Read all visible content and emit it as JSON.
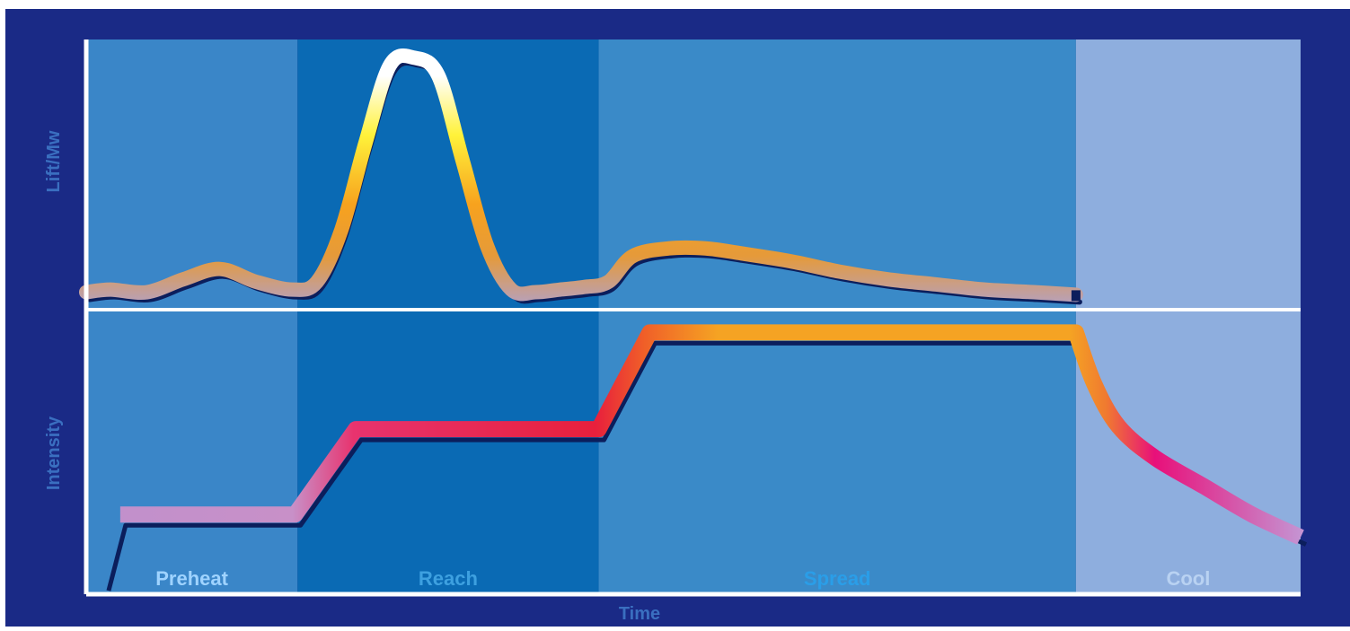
{
  "chart_data": [
    {
      "type": "line",
      "title": "",
      "ylabel": "Lift/Mw",
      "xlabel": "",
      "grid": false,
      "legend": "none",
      "xlim": [
        0,
        100
      ],
      "ylim": [
        0,
        100
      ],
      "phases": [
        {
          "label": "Preheat",
          "start": 0,
          "end": 17.4,
          "color": "#3a86c8",
          "label_color": "#9fd3ff"
        },
        {
          "label": "Reach",
          "start": 17.4,
          "end": 42.2,
          "color": "#0a6ab4",
          "label_color": "#3da0e0"
        },
        {
          "label": "Spread",
          "start": 42.2,
          "end": 81.5,
          "color": "#3a8ac8",
          "label_color": "#2a9ee8"
        },
        {
          "label": "Cool",
          "start": 81.5,
          "end": 100,
          "color": "#8eaede",
          "label_color": "#b9d2f2"
        }
      ],
      "series": [
        {
          "x": [
            0,
            2,
            5,
            8,
            11,
            14,
            17,
            19,
            21,
            23,
            25,
            27,
            29,
            31,
            33,
            35,
            37,
            39,
            41,
            43,
            45,
            48,
            51,
            54,
            58,
            62,
            66,
            70,
            74,
            78,
            81.5
          ],
          "y": [
            4,
            5,
            4,
            9,
            13,
            8,
            5,
            8,
            28,
            62,
            92,
            95,
            88,
            55,
            22,
            5,
            4,
            5,
            6,
            8,
            18,
            21,
            21,
            19,
            16,
            12,
            9,
            7,
            5,
            4,
            3
          ]
        }
      ]
    },
    {
      "type": "line",
      "title": "",
      "ylabel": "Intensity",
      "xlabel": "Time",
      "grid": false,
      "legend": "none",
      "xlim": [
        0,
        100
      ],
      "ylim": [
        0,
        100
      ],
      "series": [
        {
          "x": [
            1.4,
            2.8,
            17.2,
            22.2,
            42.2,
            46.4,
            81.5,
            83,
            85,
            88,
            92,
            96,
            100
          ],
          "y": [
            5,
            28,
            28,
            58,
            58,
            92,
            92,
            74,
            59,
            48,
            38,
            28,
            20
          ]
        }
      ]
    }
  ]
}
